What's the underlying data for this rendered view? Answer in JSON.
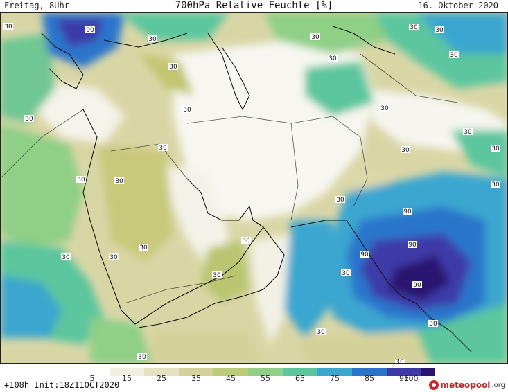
{
  "header": {
    "left": "Freitag, 8Uhr",
    "title": "700hPa Relative Feuchte [%]",
    "date": "16. Oktober 2020"
  },
  "footer": {
    "left": "+108h Init:18Z11OCT2020",
    "brand_name": "meteopool",
    "brand_tld": ".org"
  },
  "colorbar": {
    "ticks": [
      "5",
      "15",
      "25",
      "35",
      "45",
      "55",
      "65",
      "75",
      "85",
      "95",
      "100"
    ],
    "colors": [
      "#ffffff",
      "#f2efe2",
      "#e6e0c2",
      "#d4d29a",
      "#bccb78",
      "#8fcf86",
      "#5cc69e",
      "#3aa6cf",
      "#2a74cc",
      "#3d3aa8",
      "#2b1470"
    ]
  },
  "contour_labels": [
    "90",
    "30",
    "30",
    "30",
    "30",
    "30",
    "30",
    "30",
    "30",
    "30",
    "30",
    "30",
    "30",
    "30",
    "30",
    "30",
    "30",
    "30",
    "30",
    "30",
    "30",
    "30",
    "30",
    "30",
    "30",
    "90",
    "90",
    "90",
    "90",
    "30",
    "30",
    "30",
    "30",
    "30"
  ]
}
